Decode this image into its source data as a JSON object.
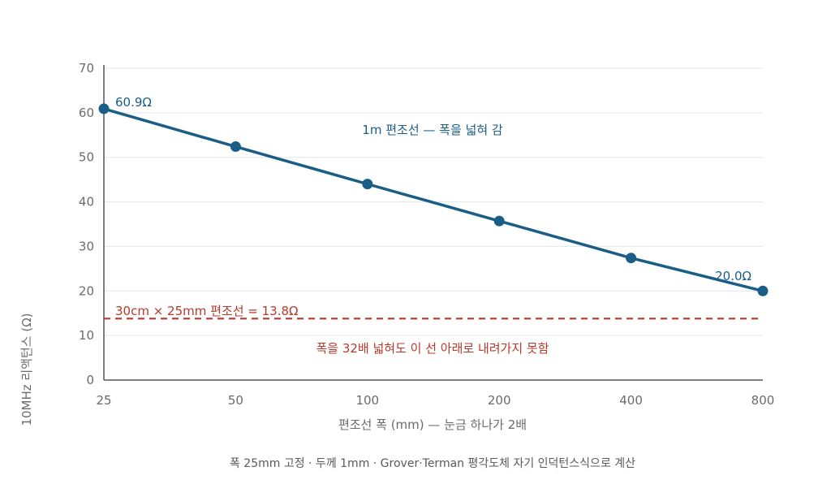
{
  "chart_data": {
    "type": "line",
    "x_scale": "log2",
    "categories": [
      "25",
      "50",
      "100",
      "200",
      "400",
      "800"
    ],
    "x": [
      25,
      50,
      100,
      200,
      400,
      800
    ],
    "series": [
      {
        "name": "",
        "values": [
          60.9,
          52.4,
          44.0,
          35.7,
          27.4,
          20.0
        ],
        "color": "#1a5e87"
      }
    ],
    "ylim": [
      0,
      70
    ],
    "yticks": [
      0,
      10,
      20,
      30,
      40,
      50,
      60,
      70
    ],
    "xlabel": "편조선 폭 (mm) — 눈금 하나가 2배",
    "ylabel": "10MHz 리액턴스 (Ω)",
    "grid": true,
    "reference_line": {
      "value": 13.8,
      "label": "30cm × 25mm 편조선 = 13.8Ω",
      "color": "#b8392c",
      "style": "dashed"
    },
    "annotations": {
      "start_label": "60.9Ω",
      "end_label": "20.0Ω",
      "series_caption": "1m 편조선 — 폭을 넓혀 감",
      "reference_caption": "폭을 32배 넓혀도 이 선 아래로 내려가지 못함"
    },
    "footnote": "폭 25mm 고정 · 두께 1mm · Grover·Terman 평각도체 자기 인덕턴스식으로 계산"
  }
}
